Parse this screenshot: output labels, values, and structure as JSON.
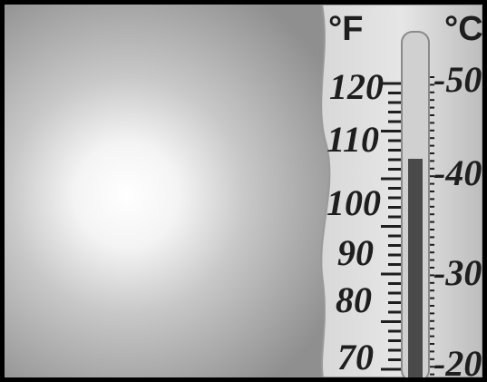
{
  "thermometer": {
    "fahrenheit_unit": "°F",
    "celsius_unit": "°C",
    "fahrenheit_labels": [
      "120",
      "110",
      "100",
      "90",
      "80",
      "70"
    ],
    "celsius_labels": [
      "-50",
      "-40",
      "-30",
      "-20"
    ]
  }
}
